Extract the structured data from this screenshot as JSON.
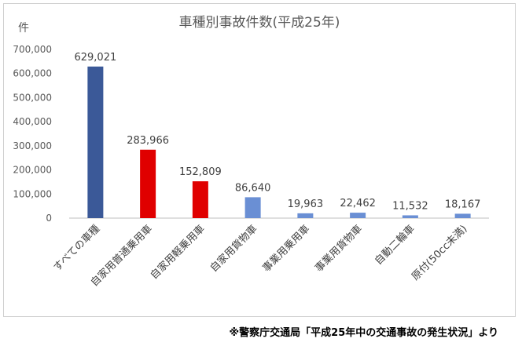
{
  "chart_data": {
    "type": "bar",
    "title": "車種別事故件数(平成25年)",
    "ylabel": "件",
    "xlabel": "",
    "ylim": [
      0,
      700000
    ],
    "yticks": [
      "0",
      "100,000",
      "200,000",
      "300,000",
      "400,000",
      "500,000",
      "600,000",
      "700,000"
    ],
    "ytick_values": [
      0,
      100000,
      200000,
      300000,
      400000,
      500000,
      600000,
      700000
    ],
    "grid": false,
    "legend": "none",
    "categories": [
      "すべての車種",
      "自家用普通乗用車",
      "自家用軽乗用車",
      "自家用貨物車",
      "事業用乗用車",
      "事業用貨物車",
      "自動二輪車",
      "原付(50cc未満)"
    ],
    "values": [
      629021,
      283966,
      152809,
      86640,
      19963,
      22462,
      11532,
      18167
    ],
    "data_labels": [
      "629,021",
      "283,966",
      "152,809",
      "86,640",
      "19,963",
      "22,462",
      "11,532",
      "18,167"
    ],
    "bar_colors": [
      "#3b5998",
      "#e00000",
      "#e00000",
      "#6a8fd4",
      "#6a8fd4",
      "#6a8fd4",
      "#6a8fd4",
      "#6a8fd4"
    ]
  },
  "footnote": "※警察庁交通局「平成25年中の交通事故の発生状況」より"
}
